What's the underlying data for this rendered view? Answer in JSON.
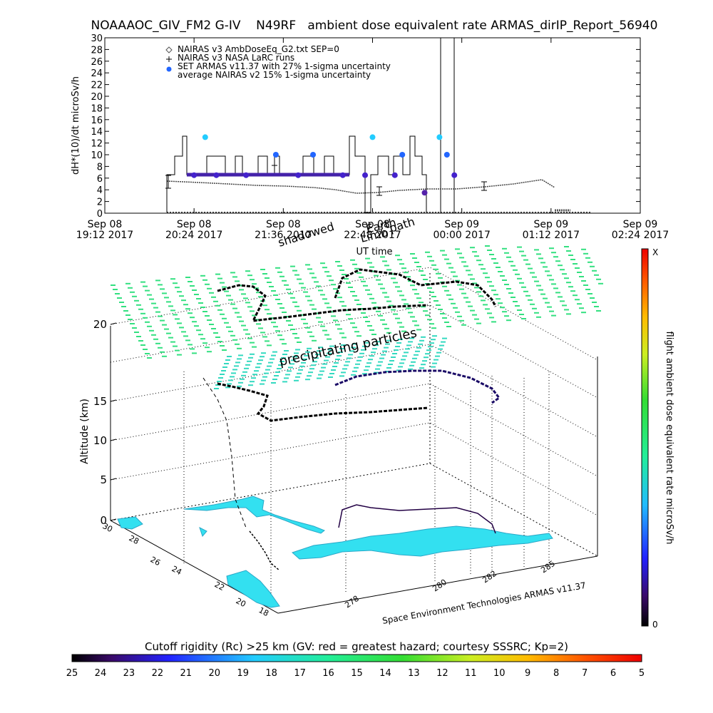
{
  "title": "NOAAAOC_GIV_FM2 G-IV    N49RF   ambient dose equivalent rate ARMAS_dirIP_Report_56940",
  "top_chart": {
    "ylabel": "dH*(10)/dt microSv/h",
    "xlabel": "UT time",
    "y_ticks": [
      "0",
      "2",
      "4",
      "6",
      "8",
      "10",
      "12",
      "14",
      "16",
      "18",
      "20",
      "22",
      "24",
      "26",
      "28",
      "30"
    ],
    "x_ticks": [
      {
        "l1": "Sep 08",
        "l2": "19:12 2017"
      },
      {
        "l1": "Sep 08",
        "l2": "20:24 2017"
      },
      {
        "l1": "Sep 08",
        "l2": "21:36 2017"
      },
      {
        "l1": "Sep 08",
        "l2": "22:48 2017"
      },
      {
        "l1": "Sep 09",
        "l2": "00:00 2017"
      },
      {
        "l1": "Sep 09",
        "l2": "01:12 2017"
      },
      {
        "l1": "Sep 09",
        "l2": "02:24 2017"
      }
    ],
    "legend": [
      {
        "marker": "diamond",
        "text": "NAIRAS v3 AmbDoseEq_G2.txt SEP=0"
      },
      {
        "marker": "plus",
        "text": "NAIRAS v3 NASA LaRC runs"
      },
      {
        "marker": "dot",
        "text": "SET ARMAS v11.37 with 27% 1-sigma uncertainty"
      },
      {
        "marker": "none",
        "text": "average NAIRAS v2 15% 1-sigma uncertainty"
      }
    ],
    "annotations": [
      "shadowed",
      "Earth",
      "Limb",
      "path"
    ]
  },
  "chart_data": {
    "type": "scatter",
    "title": "NOAAAOC_GIV_FM2 G-IV    N49RF   ambient dose equivalent rate ARMAS_dirIP_Report_56940",
    "xlabel": "UT time",
    "ylabel": "dH*(10)/dt microSv/h",
    "x_unit": "hours UT from Sep 08 19:12 2017",
    "xlim": [
      0,
      7.2
    ],
    "ylim": [
      0,
      30
    ],
    "series": [
      {
        "name": "NAIRAS v3 AmbDoseEq_G2.txt SEP=0",
        "x": [
          1.2,
          1.6,
          2.0,
          2.4,
          2.8,
          3.2,
          3.6,
          3.8,
          4.2,
          4.6,
          5.0,
          5.4,
          5.8,
          6.2
        ],
        "y": [
          5.4,
          5.2,
          4.8,
          4.6,
          4.6,
          4.5,
          3.9,
          3.3,
          3.7,
          4.0,
          4.0,
          4.5,
          5.2,
          5.6
        ]
      },
      {
        "name": "SET ARMAS v11.37 with 27% 1-sigma uncertainty",
        "x": [
          1.2,
          1.35,
          1.5,
          1.9,
          2.3,
          2.6,
          2.8,
          3.2,
          3.5,
          3.6,
          3.9,
          4.0,
          4.3,
          4.5,
          4.6,
          4.7
        ],
        "y": [
          6.5,
          13,
          6.5,
          6.5,
          10,
          6.5,
          10,
          6.5,
          6.5,
          13,
          6.5,
          10,
          3.5,
          13,
          10,
          6.5
        ]
      }
    ]
  },
  "panel3d": {
    "ylabel": "Altitude (km)",
    "z_ticks": [
      "0",
      "5",
      "10",
      "15",
      "20"
    ],
    "lat_ticks": [
      "30",
      "28",
      "26",
      "24",
      "22",
      "20",
      "18"
    ],
    "lon_ticks": [
      "278",
      "280",
      "282",
      "285"
    ],
    "annotation": "precipitating particles",
    "credit": "Space Environment Technologies ARMAS v11.37"
  },
  "colorbar_right": {
    "label": "flight ambient dose equivalent rate microSv/h",
    "top": "X",
    "bottom": "0"
  },
  "colorbar_bottom": {
    "label": "Cutoff rigidity (Rc) >25 km (GV: red = greatest hazard; courtesy SSSRC; Kp=2)",
    "ticks": [
      "25",
      "24",
      "23",
      "22",
      "21",
      "20",
      "19",
      "18",
      "17",
      "16",
      "15",
      "14",
      "13",
      "12",
      "11",
      "10",
      "9",
      "8",
      "7",
      "6",
      "5"
    ]
  },
  "colors": {
    "cyan_land": "#33e0f0",
    "field_green": "#33e080",
    "armas_blue": "#2266ff",
    "armas_purple": "#5522aa"
  }
}
